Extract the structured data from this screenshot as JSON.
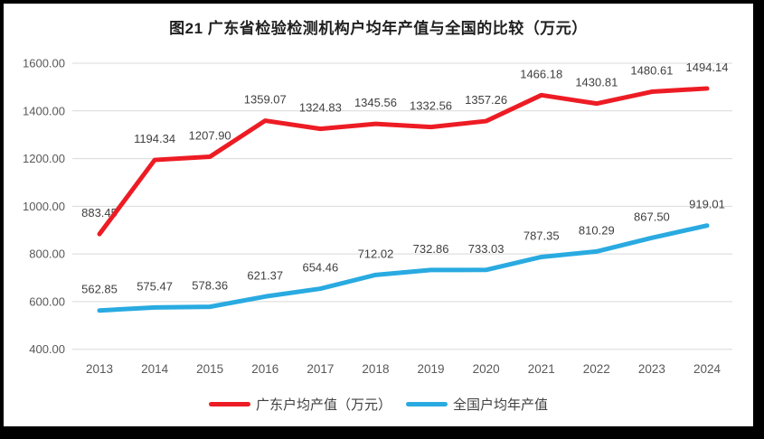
{
  "frame": {
    "border_color": "#000000",
    "panel_background": "#ffffff"
  },
  "chart_data": {
    "type": "line",
    "title": "图21  广东省检验检测机构户均年产值与全国的比较（万元）",
    "x": [
      "2013",
      "2014",
      "2015",
      "2016",
      "2017",
      "2018",
      "2019",
      "2020",
      "2021",
      "2022",
      "2023",
      "2024"
    ],
    "series": [
      {
        "name": "广东户均产值（万元）",
        "color": "#ED1C24",
        "values": [
          883.45,
          1194.34,
          1207.9,
          1359.07,
          1324.83,
          1345.56,
          1332.56,
          1357.26,
          1466.18,
          1430.81,
          1480.61,
          1494.14
        ]
      },
      {
        "name": "全国户均年产值",
        "color": "#29AAE1",
        "values": [
          562.85,
          575.47,
          578.36,
          621.37,
          654.46,
          712.02,
          732.86,
          733.03,
          787.35,
          810.29,
          867.5,
          919.01
        ]
      }
    ],
    "ylim": [
      400,
      1600
    ],
    "yticks": [
      400,
      600,
      800,
      1000,
      1200,
      1400,
      1600
    ],
    "ytick_labels": [
      "400.00",
      "600.00",
      "800.00",
      "1000.00",
      "1200.00",
      "1400.00",
      "1600.00"
    ],
    "grid": true,
    "data_labels": true,
    "legend_position": "bottom"
  },
  "styles": {
    "grid_color": "#D9D9D9",
    "tick_text_color": "#595959",
    "data_label_color": "#404040",
    "title_color": "#1f1f1f",
    "line_width": 5
  }
}
